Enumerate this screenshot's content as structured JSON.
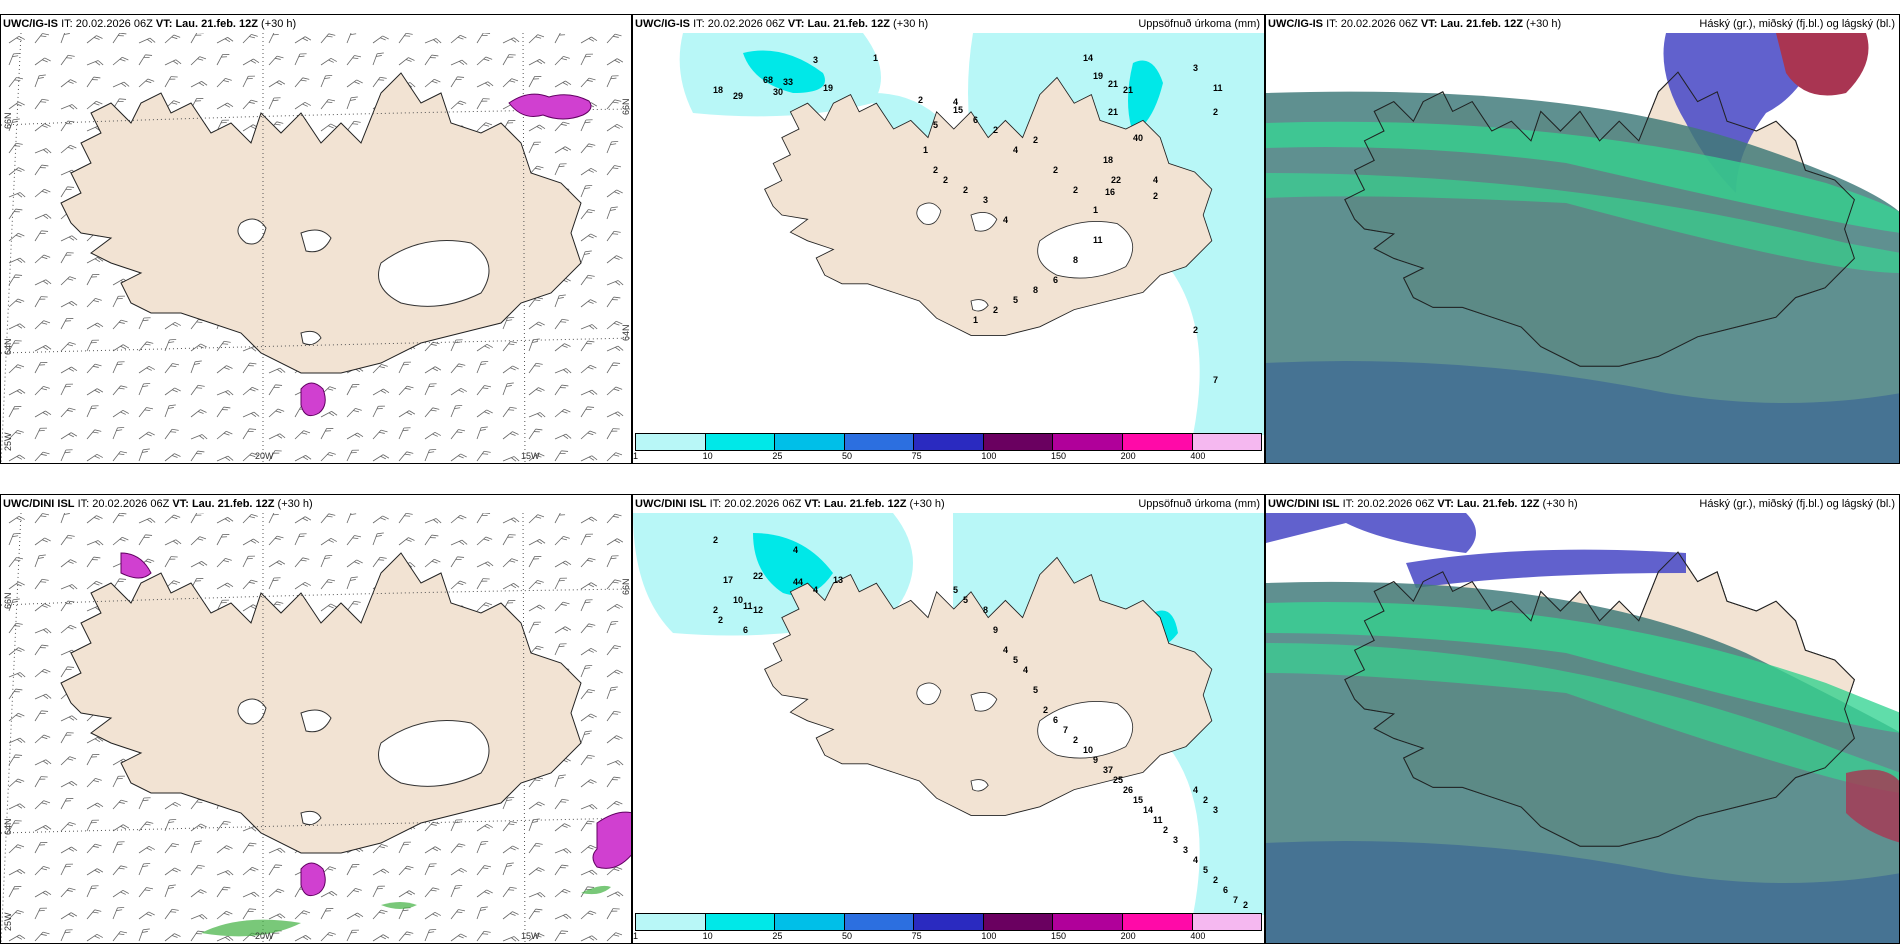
{
  "rows": [
    {
      "model": "UWC/IG-IS",
      "it_label": "IT:",
      "it_value": "20.02.2026 06Z",
      "vt_label": "VT:",
      "vt_value": "Lau. 21.feb. 12Z",
      "lead": "(+30 h)"
    },
    {
      "model": "UWC/DINI ISL",
      "it_label": "IT:",
      "it_value": "20.02.2026 06Z",
      "vt_label": "VT:",
      "vt_value": "Lau. 21.feb. 12Z",
      "lead": "(+30 h)"
    }
  ],
  "precip_title": "Uppsöfnuð úrkoma (mm)",
  "cloud_title": "Háský (gr.), miðský (fj.bl.) og lágský (bl.)",
  "axis_labels": {
    "lat_66": "66N",
    "lat_64": "64N",
    "lon_25": "25W",
    "lon_20": "20W",
    "lon_15": "15W"
  },
  "colorbar": {
    "ticks": [
      "1",
      "10",
      "25",
      "50",
      "75",
      "100",
      "150",
      "200",
      "400"
    ],
    "colors": [
      "#b8f7f7",
      "#00e8e8",
      "#00bfe8",
      "#2c6fe0",
      "#2a2ac0",
      "#6a0060",
      "#b0009a",
      "#ff0aa8",
      "#f5b8f0"
    ]
  },
  "colors": {
    "land": "#f2e3d3",
    "sea": "#ffffff",
    "precip_light": "#b8f7f7",
    "precip_mid": "#00e8e8",
    "cloud_low": "#2f6f6f",
    "cloud_mid": "#22d088",
    "cloud_high": "#5050c8",
    "cloud_high_red": "#a02040",
    "magenta": "#d040d0"
  },
  "precip_labels_top": [
    "3",
    "1",
    "18",
    "29",
    "68",
    "33",
    "30",
    "19",
    "2",
    "4",
    "14",
    "19",
    "21",
    "21",
    "21",
    "40",
    "3",
    "11",
    "2",
    "5",
    "15",
    "6",
    "2",
    "4",
    "2",
    "2",
    "2",
    "1",
    "2",
    "3",
    "4",
    "18",
    "22",
    "16",
    "4",
    "2",
    "1",
    "2",
    "2",
    "11",
    "8",
    "6",
    "8",
    "5",
    "2",
    "1",
    "2",
    "7"
  ],
  "precip_labels_bottom": [
    "2",
    "4",
    "17",
    "22",
    "44",
    "13",
    "10",
    "11",
    "12",
    "2",
    "2",
    "6",
    "4",
    "5",
    "5",
    "8",
    "9",
    "4",
    "5",
    "4",
    "5",
    "2",
    "6",
    "7",
    "2",
    "10",
    "9",
    "37",
    "25",
    "26",
    "15",
    "14",
    "11",
    "2",
    "3",
    "3",
    "4",
    "5",
    "2",
    "6",
    "7",
    "2",
    "4",
    "2",
    "3"
  ]
}
